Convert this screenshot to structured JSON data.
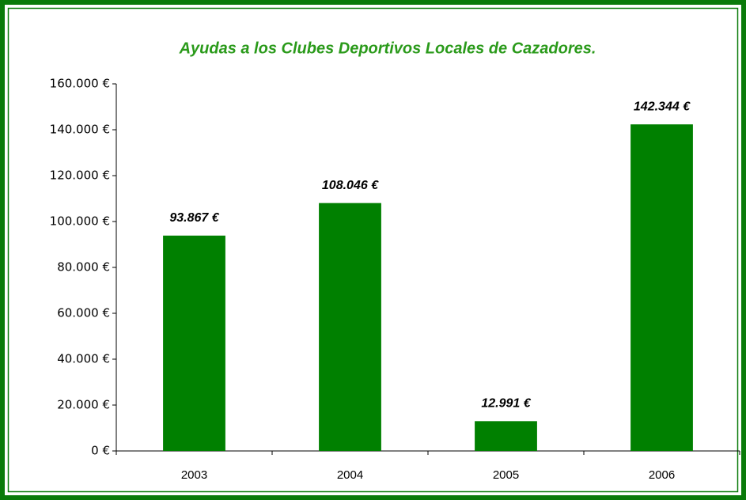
{
  "chart_data": {
    "type": "bar",
    "title": "Ayudas a los Clubes Deportivos Locales de Cazadores.",
    "categories": [
      "2003",
      "2004",
      "2005",
      "2006"
    ],
    "values": [
      93867,
      108046,
      12991,
      142344
    ],
    "value_labels": [
      "93.867 €",
      "108.046 €",
      "12.991 €",
      "142.344 €"
    ],
    "color": "#008000",
    "ylim": [
      0,
      160000
    ],
    "yticks": [
      {
        "value": 0,
        "label": "0 €"
      },
      {
        "value": 20000,
        "label": "20.000 €"
      },
      {
        "value": 40000,
        "label": "40.000 €"
      },
      {
        "value": 60000,
        "label": "60.000 €"
      },
      {
        "value": 80000,
        "label": "80.000 €"
      },
      {
        "value": 100000,
        "label": "100.000 €"
      },
      {
        "value": 120000,
        "label": "120.000 €"
      },
      {
        "value": 140000,
        "label": "140.000 €"
      },
      {
        "value": 160000,
        "label": "160.000 €"
      }
    ],
    "grid": false
  }
}
